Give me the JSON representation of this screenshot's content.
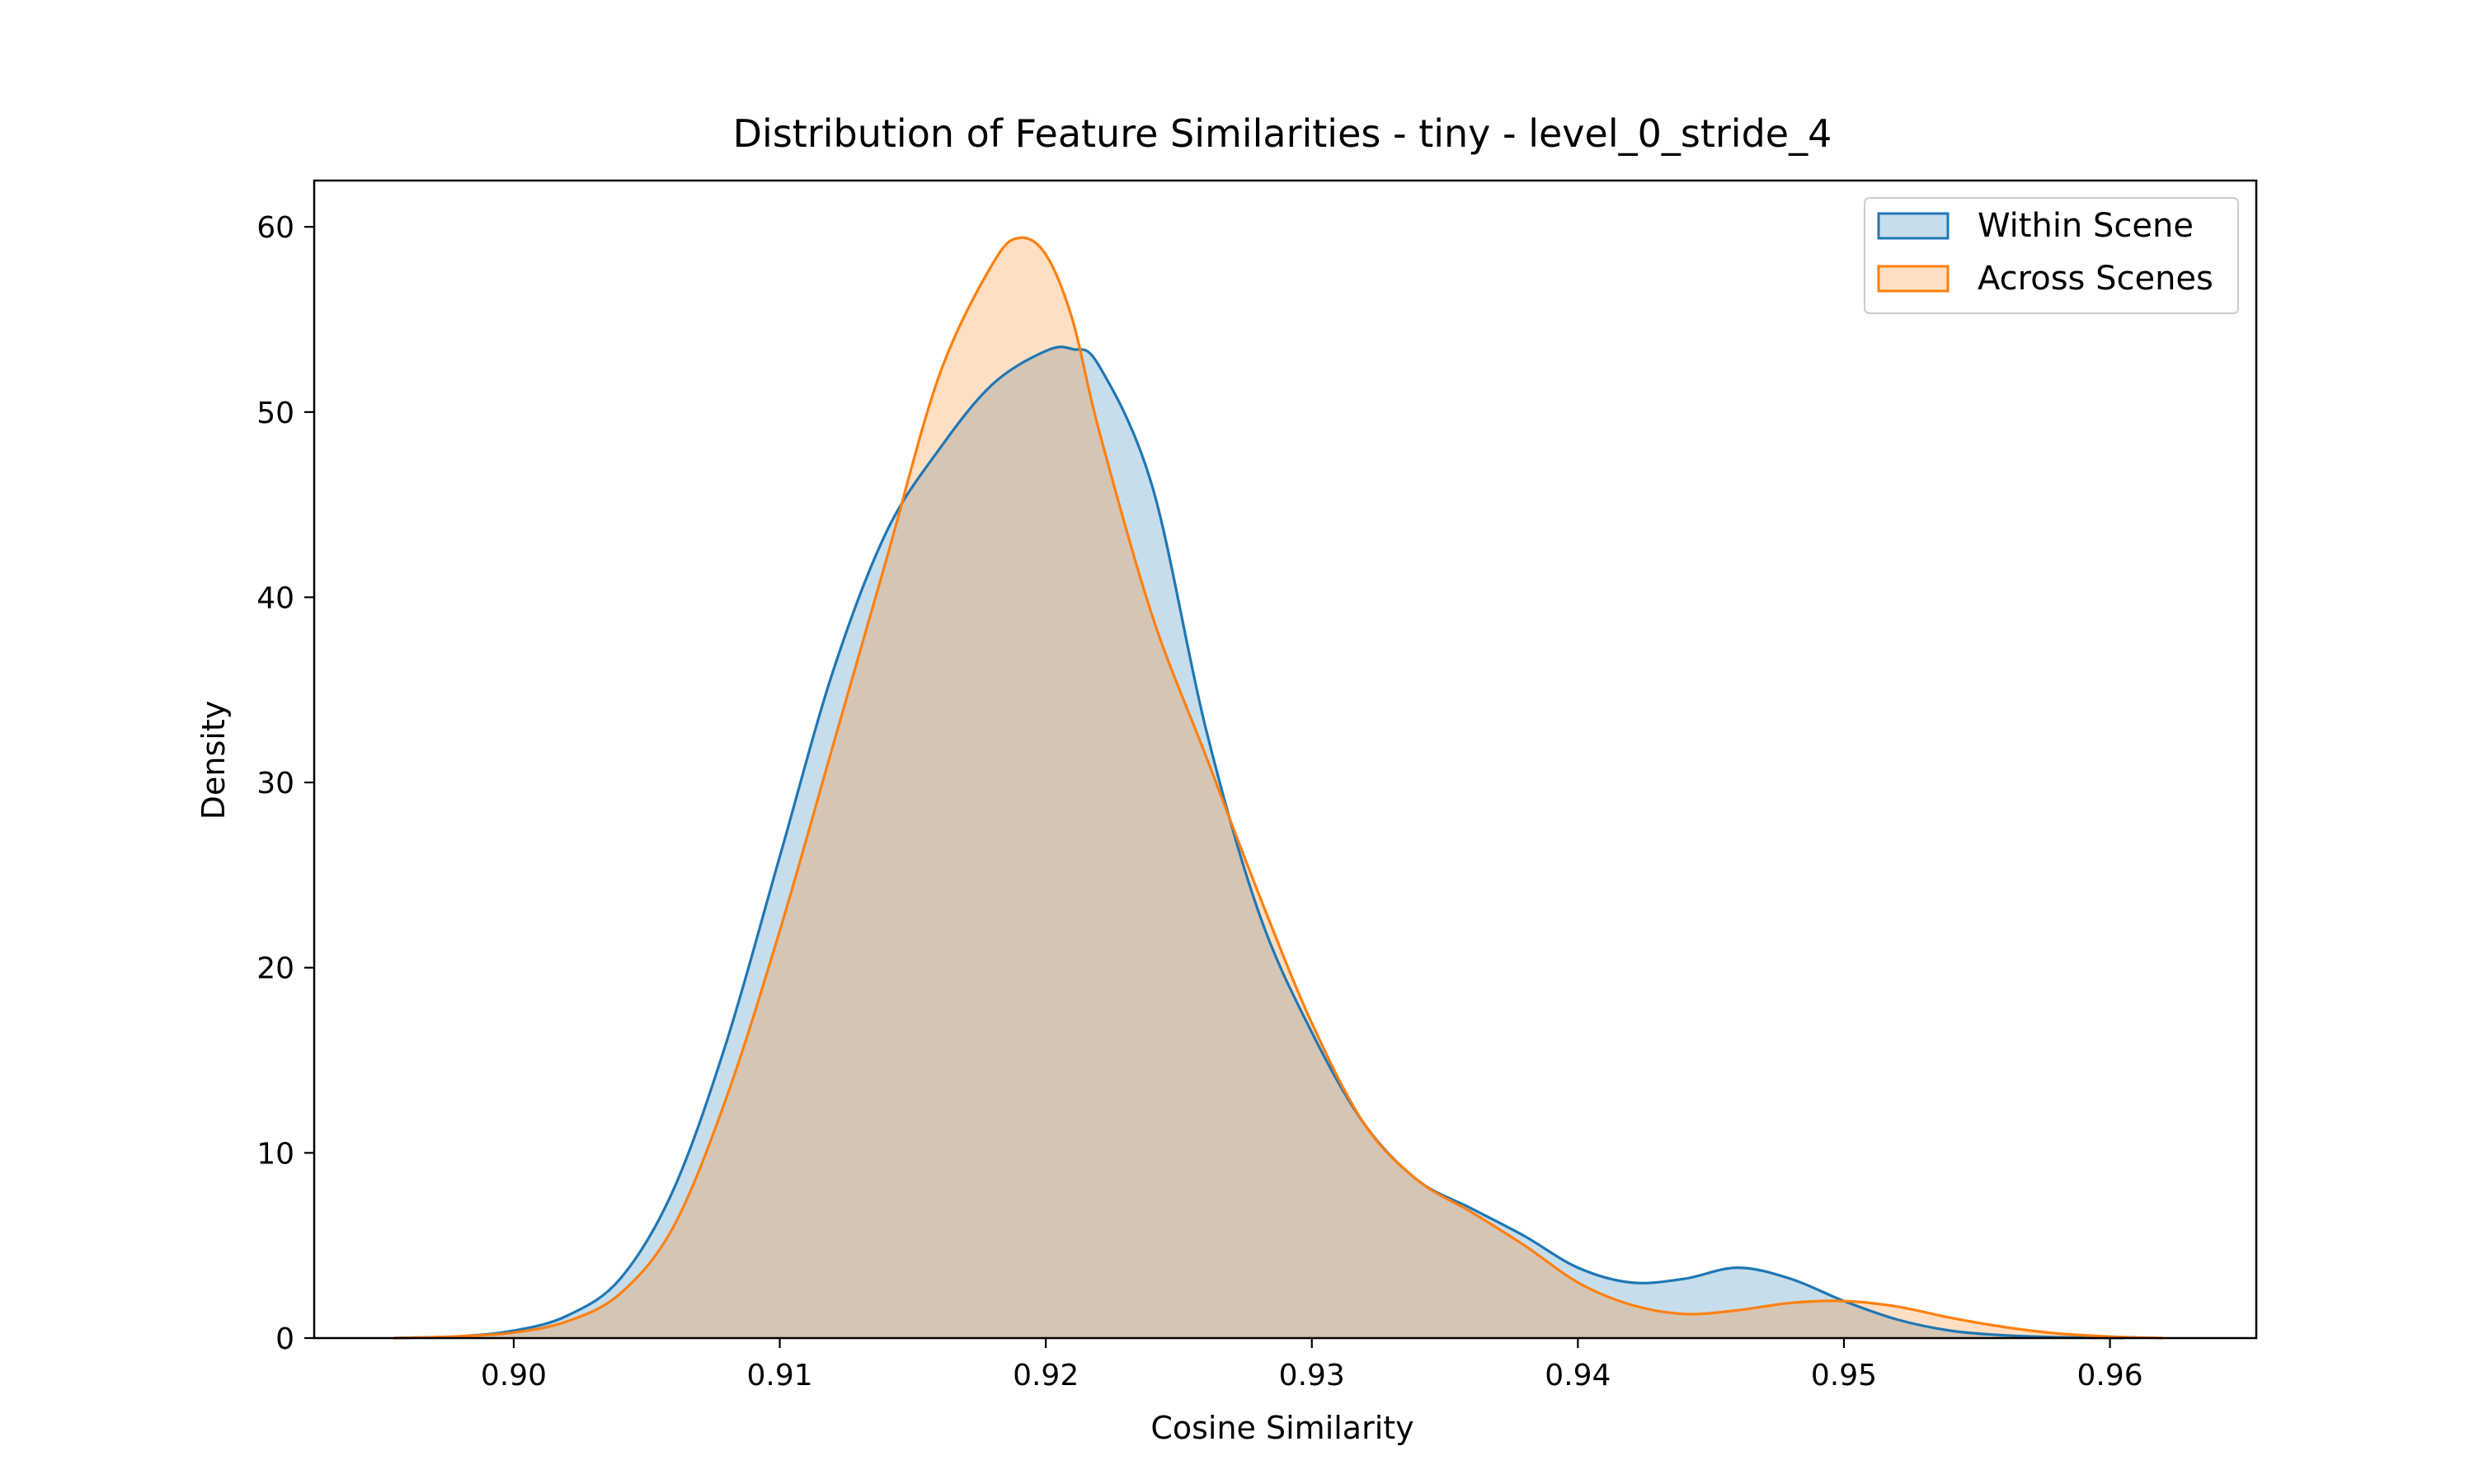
{
  "chart_data": {
    "type": "area",
    "title": "Distribution of Feature Similarities - tiny - level_0_stride_4",
    "xlabel": "Cosine Similarity",
    "ylabel": "Density",
    "xlim": [
      0.8925,
      0.9655
    ],
    "ylim": [
      0,
      62.5
    ],
    "xticks": [
      0.9,
      0.91,
      0.92,
      0.93,
      0.94,
      0.95,
      0.96
    ],
    "xtick_labels": [
      "0.90",
      "0.91",
      "0.92",
      "0.93",
      "0.94",
      "0.95",
      "0.96"
    ],
    "yticks": [
      0,
      10,
      20,
      30,
      40,
      50,
      60
    ],
    "ytick_labels": [
      "0",
      "10",
      "20",
      "30",
      "40",
      "50",
      "60"
    ],
    "grid": false,
    "legend_position": "top-right",
    "series": [
      {
        "name": "Within Scene",
        "color": "#1f77b4",
        "fill_opacity": 0.25,
        "x": [
          0.8955,
          0.898,
          0.9,
          0.902,
          0.904,
          0.906,
          0.908,
          0.91,
          0.912,
          0.914,
          0.916,
          0.918,
          0.92,
          0.921,
          0.922,
          0.924,
          0.926,
          0.928,
          0.93,
          0.932,
          0.934,
          0.936,
          0.938,
          0.94,
          0.942,
          0.944,
          0.946,
          0.948,
          0.95,
          0.952,
          0.954,
          0.956,
          0.958,
          0.9605
        ],
        "y": [
          0.0,
          0.1,
          0.4,
          1.2,
          3.2,
          8.0,
          16.0,
          26.0,
          36.0,
          43.5,
          48.0,
          51.5,
          53.3,
          53.4,
          52.5,
          46.0,
          33.0,
          23.0,
          16.5,
          11.5,
          8.5,
          7.0,
          5.5,
          3.8,
          3.0,
          3.2,
          3.8,
          3.2,
          2.0,
          1.0,
          0.4,
          0.15,
          0.05,
          0.0
        ]
      },
      {
        "name": "Across Scenes",
        "color": "#ff7f0e",
        "fill_opacity": 0.25,
        "x": [
          0.8955,
          0.898,
          0.9,
          0.902,
          0.904,
          0.906,
          0.908,
          0.91,
          0.912,
          0.914,
          0.916,
          0.918,
          0.919,
          0.92,
          0.921,
          0.922,
          0.924,
          0.926,
          0.928,
          0.93,
          0.932,
          0.934,
          0.936,
          0.938,
          0.94,
          0.942,
          0.944,
          0.946,
          0.948,
          0.95,
          0.952,
          0.954,
          0.956,
          0.958,
          0.96,
          0.962
        ],
        "y": [
          0.0,
          0.1,
          0.3,
          0.9,
          2.4,
          6.0,
          13.0,
          22.0,
          32.0,
          42.0,
          52.0,
          58.0,
          59.4,
          58.5,
          55.0,
          49.0,
          39.0,
          31.5,
          24.0,
          17.0,
          11.5,
          8.5,
          6.8,
          5.0,
          3.0,
          1.8,
          1.3,
          1.5,
          1.9,
          2.0,
          1.7,
          1.1,
          0.6,
          0.25,
          0.08,
          0.0
        ]
      }
    ]
  }
}
